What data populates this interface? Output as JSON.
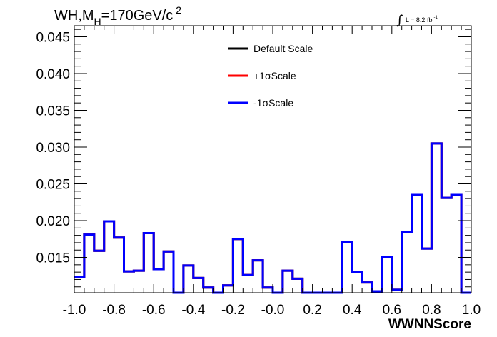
{
  "chart_data": {
    "type": "histogram",
    "title_parts": {
      "base": "WH,M",
      "sub": "H",
      "value": "=170GeV/c",
      "sup": "2"
    },
    "lumi": {
      "integral": "∫",
      "text": "L = 8.2 fb",
      "sup": "-1"
    },
    "xlabel": "WWNNScore",
    "ylabel": "",
    "xlim": [
      -1.0,
      1.0
    ],
    "ylim": [
      0.0102,
      0.0465
    ],
    "x_ticks": [
      "-1.0",
      "-0.8",
      "-0.6",
      "-0.4",
      "-0.2",
      "-0.0",
      "0.2",
      "0.4",
      "0.6",
      "0.8",
      "1.0"
    ],
    "y_ticks": [
      "0.015",
      "0.020",
      "0.025",
      "0.030",
      "0.035",
      "0.040",
      "0.045"
    ],
    "bin_edges": [
      -1.0,
      -0.95,
      -0.9,
      -0.85,
      -0.8,
      -0.75,
      -0.7,
      -0.65,
      -0.6,
      -0.55,
      -0.5,
      -0.45,
      -0.4,
      -0.35,
      -0.3,
      -0.25,
      -0.2,
      -0.15,
      -0.1,
      -0.05,
      0.0,
      0.05,
      0.1,
      0.15,
      0.2,
      0.25,
      0.3,
      0.35,
      0.4,
      0.45,
      0.5,
      0.55,
      0.6,
      0.65,
      0.7,
      0.75,
      0.8,
      0.85,
      0.9,
      0.95,
      1.0
    ],
    "series": [
      {
        "name": "Default Scale",
        "color": "#000000",
        "values": [
          0.0123,
          0.0181,
          0.0159,
          0.0199,
          0.0177,
          0.0131,
          0.0132,
          0.0183,
          0.0134,
          0.0158,
          0.0102,
          0.0139,
          0.0122,
          0.0109,
          0.0102,
          0.0112,
          0.0175,
          0.0126,
          0.0146,
          0.0109,
          0.0102,
          0.0132,
          0.0121,
          0.0102,
          0.0102,
          0.0102,
          0.0102,
          0.0171,
          0.013,
          0.0116,
          0.0104,
          0.0151,
          0.0106,
          0.0184,
          0.0235,
          0.0162,
          0.0305,
          0.0231,
          0.0235,
          0.0102
        ]
      },
      {
        "name": "+1σScale",
        "color": "#ff0000",
        "values": [
          0.0123,
          0.0181,
          0.0159,
          0.0199,
          0.0177,
          0.0131,
          0.0132,
          0.0183,
          0.0134,
          0.0158,
          0.0102,
          0.0139,
          0.0122,
          0.0109,
          0.0102,
          0.0112,
          0.0175,
          0.0126,
          0.0146,
          0.0109,
          0.0102,
          0.0132,
          0.0121,
          0.0102,
          0.0102,
          0.0102,
          0.0102,
          0.0171,
          0.013,
          0.0116,
          0.0104,
          0.0151,
          0.0106,
          0.0184,
          0.0235,
          0.0162,
          0.0305,
          0.0231,
          0.0235,
          0.0102
        ]
      },
      {
        "name": "-1σScale",
        "color": "#0000ff",
        "values": [
          0.0123,
          0.0181,
          0.0159,
          0.0199,
          0.0177,
          0.0131,
          0.0132,
          0.0183,
          0.0134,
          0.0158,
          0.0102,
          0.0139,
          0.0122,
          0.0109,
          0.0102,
          0.0112,
          0.0175,
          0.0126,
          0.0146,
          0.0109,
          0.0102,
          0.0132,
          0.0121,
          0.0102,
          0.0102,
          0.0102,
          0.0102,
          0.0171,
          0.013,
          0.0116,
          0.0104,
          0.0151,
          0.0106,
          0.0184,
          0.0235,
          0.0162,
          0.0305,
          0.0231,
          0.0235,
          0.0102
        ]
      }
    ],
    "legend_position": "top-center",
    "grid": false
  }
}
